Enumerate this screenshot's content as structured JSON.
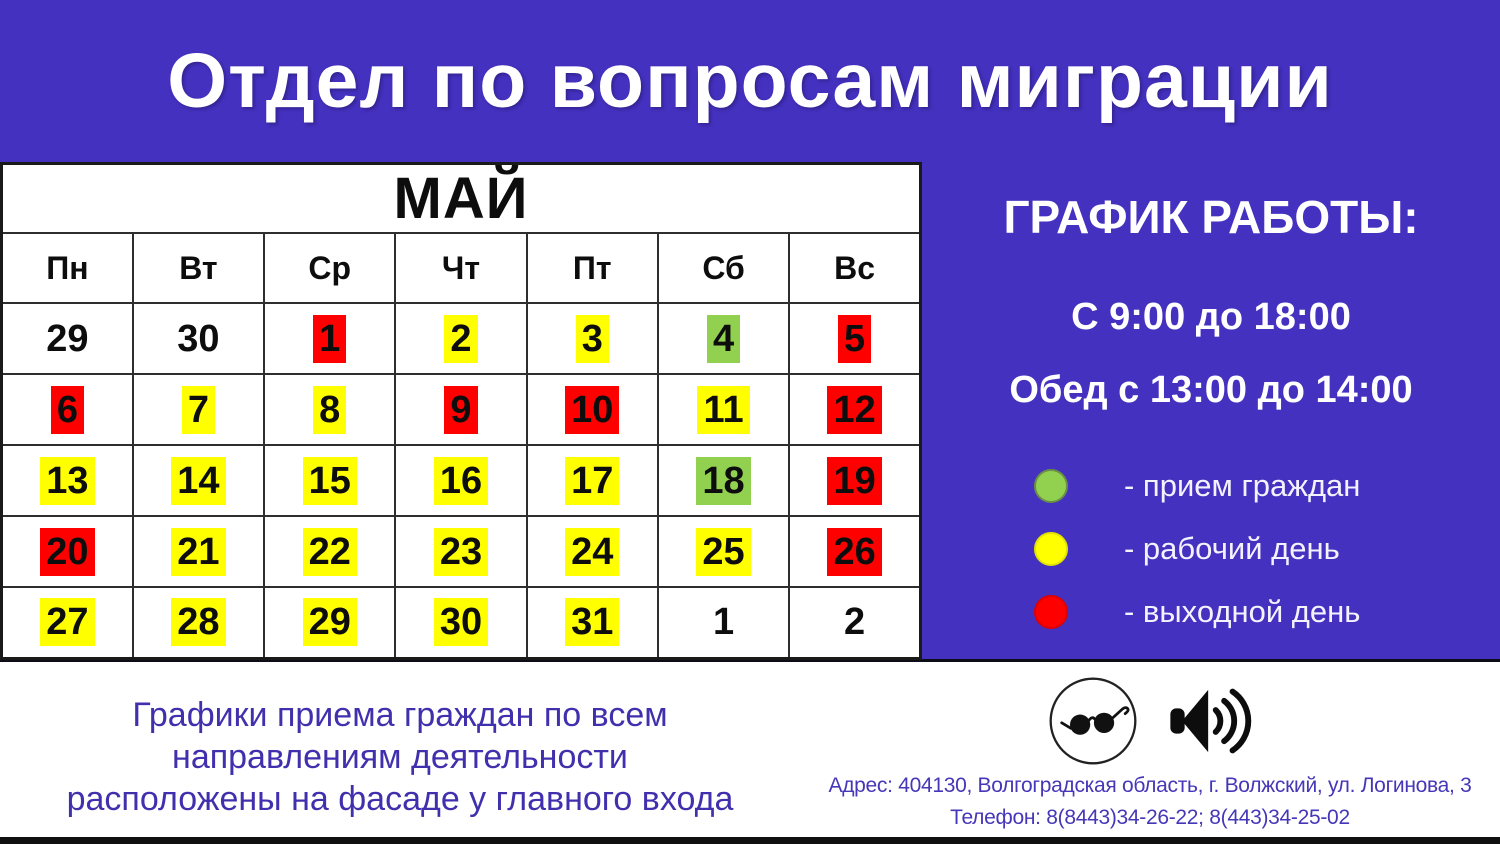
{
  "header": {
    "title": "Отдел по вопросам миграции"
  },
  "calendar": {
    "month": "МАЙ",
    "day_headers": [
      "Пн",
      "Вт",
      "Ср",
      "Чт",
      "Пт",
      "Сб",
      "Вс"
    ],
    "weeks": [
      [
        {
          "day": 29,
          "status": "none"
        },
        {
          "day": 30,
          "status": "none"
        },
        {
          "day": 1,
          "status": "off"
        },
        {
          "day": 2,
          "status": "work"
        },
        {
          "day": 3,
          "status": "work"
        },
        {
          "day": 4,
          "status": "reception"
        },
        {
          "day": 5,
          "status": "off"
        }
      ],
      [
        {
          "day": 6,
          "status": "off"
        },
        {
          "day": 7,
          "status": "work"
        },
        {
          "day": 8,
          "status": "work"
        },
        {
          "day": 9,
          "status": "off"
        },
        {
          "day": 10,
          "status": "off"
        },
        {
          "day": 11,
          "status": "work"
        },
        {
          "day": 12,
          "status": "off"
        }
      ],
      [
        {
          "day": 13,
          "status": "work"
        },
        {
          "day": 14,
          "status": "work"
        },
        {
          "day": 15,
          "status": "work"
        },
        {
          "day": 16,
          "status": "work"
        },
        {
          "day": 17,
          "status": "work"
        },
        {
          "day": 18,
          "status": "reception"
        },
        {
          "day": 19,
          "status": "off"
        }
      ],
      [
        {
          "day": 20,
          "status": "off"
        },
        {
          "day": 21,
          "status": "work"
        },
        {
          "day": 22,
          "status": "work"
        },
        {
          "day": 23,
          "status": "work"
        },
        {
          "day": 24,
          "status": "work"
        },
        {
          "day": 25,
          "status": "work"
        },
        {
          "day": 26,
          "status": "off"
        }
      ],
      [
        {
          "day": 27,
          "status": "work"
        },
        {
          "day": 28,
          "status": "work"
        },
        {
          "day": 29,
          "status": "work"
        },
        {
          "day": 30,
          "status": "work"
        },
        {
          "day": 31,
          "status": "work"
        },
        {
          "day": 1,
          "status": "none"
        },
        {
          "day": 2,
          "status": "none"
        }
      ]
    ]
  },
  "colors": {
    "reception": "#92D050",
    "work": "#FFFF00",
    "off": "#FF0000",
    "panel": "#4431BF"
  },
  "schedule": {
    "title": "ГРАФИК РАБОТЫ:",
    "hours": "С 9:00 до 18:00",
    "lunch": "Обед с 13:00 до 14:00"
  },
  "legend": [
    {
      "icon": "reception-day-dot",
      "color": "#92D050",
      "border": "#6B8E46",
      "label": "- прием граждан"
    },
    {
      "icon": "work-day-dot",
      "color": "#FFFF00",
      "border": "#E3E300",
      "label": "- рабочий день"
    },
    {
      "icon": "day-off-dot",
      "color": "#FF0000",
      "border": "#E00000",
      "label": "- выходной день"
    }
  ],
  "footer": {
    "note_line1": "Графики приема граждан по всем",
    "note_line2": "направлениям деятельности",
    "note_line3": "расположены на фасаде у главного входа",
    "address": "Адрес: 404130, Волгоградская область, г. Волжский, ул. Логинова, 3",
    "phone": "Телефон: 8(8443)34-26-22; 8(443)34-25-02"
  },
  "icons": {
    "vision": "glasses-icon",
    "audio": "speaker-icon"
  }
}
